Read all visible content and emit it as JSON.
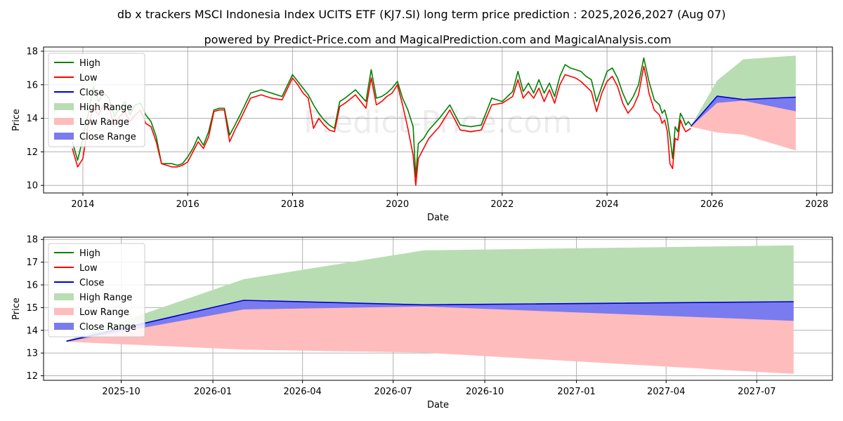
{
  "title": "db x trackers MSCI Indonesia Index UCITS ETF (KJ7.SI) long term price prediction : 2025,2026,2027 (Aug 07)",
  "subtitle": "powered by Predict-Price.com and MagicalPrediction.com and MagicalAnalysis.com",
  "watermark": "Predict-Price.com",
  "colors": {
    "high": "#008000",
    "low": "#ff0000",
    "close": "#0000cc",
    "high_range": "#b9ddb3",
    "low_range": "#ffbcbc",
    "close_range": "#7b7bf0"
  },
  "chart_data": [
    {
      "type": "line",
      "xlabel": "Date",
      "ylabel": "Price",
      "xlim": [
        2013.25,
        2028.3
      ],
      "ylim": [
        9.55,
        18.25
      ],
      "xticks": [
        2014,
        2016,
        2018,
        2020,
        2022,
        2024,
        2026,
        2028
      ],
      "yticks": [
        10,
        12,
        14,
        16,
        18
      ],
      "grid": true,
      "legend_position": "top-left",
      "legend": [
        "High",
        "Low",
        "Close",
        "High Range",
        "Low Range",
        "Close Range"
      ],
      "series": [
        {
          "name": "High",
          "x": [
            2013.8,
            2013.9,
            2014.0,
            2014.1,
            2014.2,
            2014.3,
            2014.4,
            2014.5,
            2014.6,
            2014.7,
            2014.8,
            2014.9,
            2015.0,
            2015.1,
            2015.2,
            2015.3,
            2015.4,
            2015.5,
            2015.6,
            2015.7,
            2015.8,
            2015.9,
            2016.0,
            2016.1,
            2016.2,
            2016.3,
            2016.4,
            2016.5,
            2016.6,
            2016.7,
            2016.8,
            2016.9,
            2017.0,
            2017.2,
            2017.4,
            2017.6,
            2017.8,
            2018.0,
            2018.1,
            2018.2,
            2018.3,
            2018.4,
            2018.5,
            2018.6,
            2018.7,
            2018.8,
            2018.9,
            2019.0,
            2019.2,
            2019.4,
            2019.5,
            2019.6,
            2019.7,
            2019.8,
            2019.9,
            2020.0,
            2020.1,
            2020.2,
            2020.3,
            2020.35,
            2020.4,
            2020.5,
            2020.6,
            2020.8,
            2021.0,
            2021.2,
            2021.4,
            2021.6,
            2021.8,
            2022.0,
            2022.2,
            2022.3,
            2022.4,
            2022.5,
            2022.6,
            2022.7,
            2022.8,
            2022.9,
            2023.0,
            2023.1,
            2023.2,
            2023.3,
            2023.4,
            2023.5,
            2023.6,
            2023.7,
            2023.8,
            2023.9,
            2024.0,
            2024.1,
            2024.2,
            2024.3,
            2024.4,
            2024.5,
            2024.6,
            2024.7,
            2024.75,
            2024.8,
            2024.9,
            2025.0,
            2025.05,
            2025.1,
            2025.15,
            2025.2,
            2025.25,
            2025.3,
            2025.35,
            2025.4,
            2025.45,
            2025.5,
            2025.55,
            2025.6
          ],
          "values": [
            12.6,
            11.5,
            12.8,
            14.2,
            15.9,
            15.0,
            15.5,
            15.2,
            14.1,
            14.6,
            15.0,
            14.2,
            14.8,
            14.9,
            14.2,
            13.8,
            12.9,
            11.3,
            11.3,
            11.3,
            11.2,
            11.3,
            11.7,
            12.2,
            12.9,
            12.4,
            13.2,
            14.5,
            14.6,
            14.6,
            13.0,
            13.6,
            14.2,
            15.5,
            15.7,
            15.5,
            15.3,
            16.6,
            16.2,
            15.8,
            15.4,
            14.8,
            14.3,
            13.9,
            13.6,
            13.4,
            15.0,
            15.2,
            15.7,
            15.0,
            16.9,
            15.2,
            15.3,
            15.5,
            15.8,
            16.2,
            15.2,
            14.5,
            13.5,
            10.5,
            12.5,
            12.8,
            13.3,
            14.0,
            14.8,
            13.6,
            13.5,
            13.6,
            15.2,
            15.0,
            15.6,
            16.8,
            15.6,
            16.1,
            15.5,
            16.3,
            15.5,
            16.1,
            15.3,
            16.5,
            17.2,
            17.0,
            16.9,
            16.8,
            16.5,
            16.3,
            15.0,
            15.9,
            16.8,
            17.0,
            16.4,
            15.5,
            14.8,
            15.3,
            16.0,
            17.6,
            16.9,
            16.2,
            15.1,
            14.8,
            14.3,
            14.5,
            13.9,
            12.9,
            11.6,
            13.5,
            13.2,
            14.3,
            14.0,
            13.6,
            13.8,
            13.6
          ]
        },
        {
          "name": "Low",
          "x": [
            2013.8,
            2013.9,
            2014.0,
            2014.1,
            2014.2,
            2014.3,
            2014.4,
            2014.5,
            2014.6,
            2014.7,
            2014.8,
            2014.9,
            2015.0,
            2015.1,
            2015.2,
            2015.3,
            2015.4,
            2015.5,
            2015.6,
            2015.7,
            2015.8,
            2015.9,
            2016.0,
            2016.1,
            2016.2,
            2016.3,
            2016.4,
            2016.5,
            2016.6,
            2016.7,
            2016.8,
            2016.9,
            2017.0,
            2017.2,
            2017.4,
            2017.6,
            2017.8,
            2018.0,
            2018.1,
            2018.2,
            2018.3,
            2018.4,
            2018.5,
            2018.6,
            2018.7,
            2018.8,
            2018.9,
            2019.0,
            2019.2,
            2019.4,
            2019.5,
            2019.6,
            2019.7,
            2019.8,
            2019.9,
            2020.0,
            2020.1,
            2020.2,
            2020.3,
            2020.35,
            2020.4,
            2020.5,
            2020.6,
            2020.8,
            2021.0,
            2021.2,
            2021.4,
            2021.6,
            2021.8,
            2022.0,
            2022.2,
            2022.3,
            2022.4,
            2022.5,
            2022.6,
            2022.7,
            2022.8,
            2022.9,
            2023.0,
            2023.1,
            2023.2,
            2023.3,
            2023.4,
            2023.5,
            2023.6,
            2023.7,
            2023.8,
            2023.9,
            2024.0,
            2024.1,
            2024.2,
            2024.3,
            2024.4,
            2024.5,
            2024.6,
            2024.7,
            2024.75,
            2024.8,
            2024.9,
            2025.0,
            2025.05,
            2025.1,
            2025.15,
            2025.2,
            2025.25,
            2025.3,
            2025.35,
            2025.4,
            2025.45,
            2025.5,
            2025.55,
            2025.6
          ],
          "values": [
            12.2,
            11.1,
            11.6,
            13.6,
            14.6,
            14.2,
            14.8,
            14.6,
            13.6,
            14.1,
            14.4,
            13.8,
            14.2,
            14.5,
            13.7,
            13.5,
            12.6,
            11.3,
            11.2,
            11.1,
            11.1,
            11.2,
            11.4,
            12.0,
            12.6,
            12.2,
            12.9,
            14.4,
            14.5,
            14.5,
            12.6,
            13.3,
            13.9,
            15.2,
            15.4,
            15.2,
            15.1,
            16.4,
            16.0,
            15.5,
            15.2,
            13.4,
            14.0,
            13.6,
            13.3,
            13.2,
            14.7,
            14.9,
            15.4,
            14.6,
            16.4,
            14.8,
            15.0,
            15.3,
            15.5,
            16.0,
            14.8,
            13.4,
            11.8,
            10.0,
            11.6,
            12.2,
            12.8,
            13.5,
            14.5,
            13.3,
            13.2,
            13.3,
            14.8,
            14.9,
            15.3,
            16.3,
            15.2,
            15.6,
            15.2,
            15.8,
            15.0,
            15.7,
            14.9,
            16.0,
            16.6,
            16.5,
            16.4,
            16.2,
            15.9,
            15.6,
            14.4,
            15.5,
            16.2,
            16.5,
            15.9,
            14.9,
            14.3,
            14.7,
            15.4,
            17.1,
            16.4,
            15.5,
            14.5,
            14.2,
            13.7,
            13.9,
            13.2,
            11.3,
            11.0,
            12.8,
            12.7,
            13.9,
            13.5,
            13.2,
            13.3,
            13.4
          ]
        },
        {
          "name": "Close",
          "x": [
            2025.6,
            2026.1,
            2026.6,
            2027.6
          ],
          "values": [
            13.52,
            15.32,
            15.12,
            15.26
          ]
        }
      ],
      "ranges": [
        {
          "name": "High Range",
          "x": [
            2025.6,
            2026.1,
            2026.6,
            2027.6
          ],
          "upper": [
            13.55,
            16.25,
            17.52,
            17.74
          ],
          "lower": [
            13.52,
            15.32,
            15.12,
            15.26
          ]
        },
        {
          "name": "Low Range",
          "x": [
            2025.6,
            2026.1,
            2026.6,
            2027.6
          ],
          "upper": [
            13.52,
            15.32,
            15.12,
            15.26
          ],
          "lower": [
            13.5,
            13.15,
            13.02,
            12.08
          ]
        },
        {
          "name": "Close Range",
          "x": [
            2025.6,
            2026.1,
            2026.6,
            2027.6
          ],
          "upper": [
            13.52,
            15.32,
            15.15,
            15.28
          ],
          "lower": [
            13.5,
            14.92,
            15.05,
            14.42
          ]
        }
      ]
    },
    {
      "type": "line",
      "xlabel": "Date",
      "ylabel": "Price",
      "x_unit": "date",
      "xlim": [
        "2025-07-15",
        "2027-09-15"
      ],
      "ylim": [
        11.8,
        18.1
      ],
      "xticks": [
        "2025-10",
        "2026-01",
        "2026-04",
        "2026-07",
        "2026-10",
        "2027-01",
        "2027-04",
        "2027-07"
      ],
      "yticks": [
        12,
        13,
        14,
        15,
        16,
        17,
        18
      ],
      "grid": true,
      "legend_position": "top-left",
      "legend": [
        "High",
        "Low",
        "Close",
        "High Range",
        "Low Range",
        "Close Range"
      ],
      "series": [
        {
          "name": "Close",
          "x": [
            "2025-08-07",
            "2026-02-01",
            "2026-08-01",
            "2027-08-07"
          ],
          "values": [
            13.52,
            15.32,
            15.12,
            15.26
          ]
        }
      ],
      "ranges": [
        {
          "name": "High Range",
          "x": [
            "2025-08-07",
            "2026-02-01",
            "2026-08-01",
            "2027-08-07"
          ],
          "upper": [
            13.55,
            16.25,
            17.52,
            17.74
          ],
          "lower": [
            13.52,
            15.32,
            15.12,
            15.26
          ]
        },
        {
          "name": "Low Range",
          "x": [
            "2025-08-07",
            "2026-02-01",
            "2026-08-01",
            "2027-08-07"
          ],
          "upper": [
            13.52,
            15.32,
            15.12,
            15.26
          ],
          "lower": [
            13.5,
            13.15,
            13.02,
            12.08
          ]
        },
        {
          "name": "Close Range",
          "x": [
            "2025-08-07",
            "2026-02-01",
            "2026-08-01",
            "2027-08-07"
          ],
          "upper": [
            13.52,
            15.32,
            15.15,
            15.28
          ],
          "lower": [
            13.5,
            14.92,
            15.05,
            14.42
          ]
        }
      ]
    }
  ]
}
